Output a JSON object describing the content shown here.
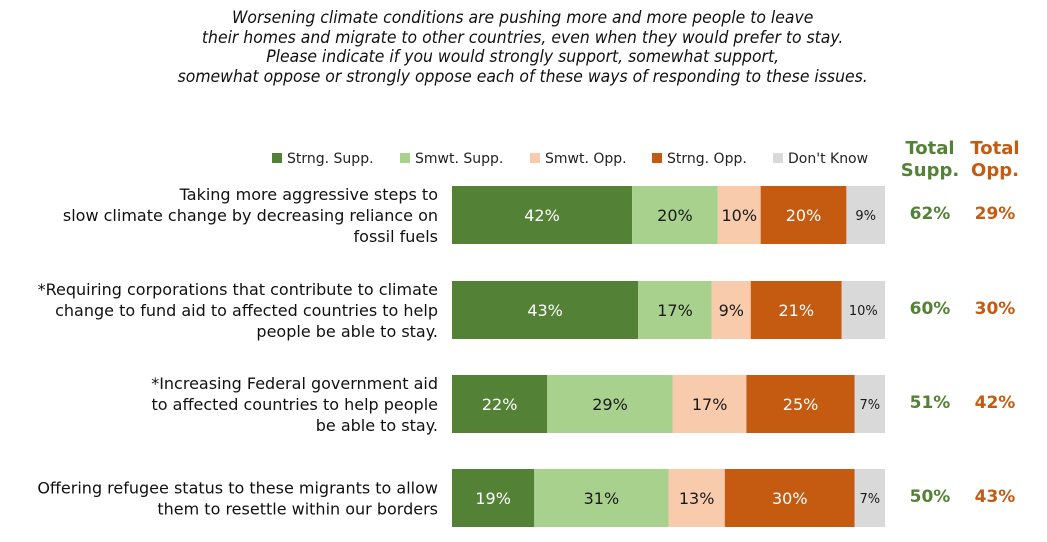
{
  "title_lines": [
    "Worsening climate conditions are pushing more and more people to leave",
    "their homes and migrate to other countries, even when they would prefer to stay.",
    "Please indicate if you would strongly support, somewhat support,",
    "somewhat oppose or strongly oppose each of these ways of responding to these issues."
  ],
  "colors": {
    "strong_support": "#538135",
    "somewhat_support": "#a9d18e",
    "somewhat_oppose": "#f8cbad",
    "strong_oppose": "#c55a11",
    "dont_know": "#d9d9d9",
    "total_support_text": "#538135",
    "total_oppose_text": "#c55a11"
  },
  "totals_header": {
    "support": [
      "Total",
      "Supp."
    ],
    "oppose": [
      "Total",
      "Opp."
    ]
  },
  "chart_data": {
    "type": "bar",
    "orientation": "horizontal-stacked-100",
    "legend_position": "top",
    "series": [
      {
        "name": "Strng. Supp.",
        "values": [
          42,
          43,
          22,
          19
        ]
      },
      {
        "name": "Smwt. Supp.",
        "values": [
          20,
          17,
          29,
          31
        ]
      },
      {
        "name": "Smwt. Opp.",
        "values": [
          10,
          9,
          17,
          13
        ]
      },
      {
        "name": "Strng. Opp.",
        "values": [
          20,
          21,
          25,
          30
        ]
      },
      {
        "name": "Don't Know",
        "values": [
          9,
          10,
          7,
          7
        ]
      }
    ],
    "categories": [
      [
        "Taking more aggressive steps to",
        "slow climate change by decreasing reliance on",
        "fossil fuels"
      ],
      [
        "*Requiring corporations that contribute to climate",
        "change to fund aid to affected countries to help",
        "people be able to stay."
      ],
      [
        "*Increasing Federal government aid",
        "to affected countries to help people",
        "be able to stay."
      ],
      [
        "Offering refugee status to these migrants to allow",
        "them to resettle within our borders"
      ]
    ],
    "total_support": [
      "62%",
      "60%",
      "51%",
      "50%"
    ],
    "total_oppose": [
      "29%",
      "30%",
      "42%",
      "43%"
    ]
  }
}
